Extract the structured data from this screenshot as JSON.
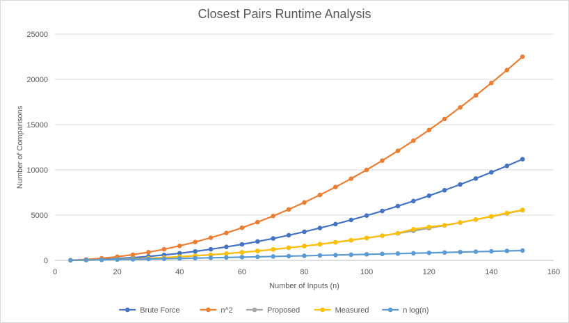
{
  "chart_data": {
    "type": "line",
    "title": "Closest Pairs Runtime Analysis",
    "xlabel": "Number  of Inputs (n)",
    "ylabel": "Number  of Comparisons",
    "xlim": [
      0,
      160
    ],
    "ylim": [
      0,
      25000
    ],
    "x_ticks": [
      "0",
      "20",
      "40",
      "60",
      "80",
      "100",
      "120",
      "140",
      "160"
    ],
    "y_ticks": [
      "0",
      "5000",
      "10000",
      "15000",
      "20000",
      "25000"
    ],
    "grid": "horizontal",
    "legend_position": "bottom",
    "x": [
      5,
      10,
      15,
      20,
      25,
      30,
      35,
      40,
      45,
      50,
      55,
      60,
      65,
      70,
      75,
      80,
      85,
      90,
      95,
      100,
      105,
      110,
      115,
      120,
      125,
      130,
      135,
      140,
      145,
      150
    ],
    "series": [
      {
        "name": "Brute Force",
        "color": "#4472c4",
        "values": [
          10,
          45,
          105,
          190,
          300,
          435,
          595,
          780,
          990,
          1225,
          1485,
          1770,
          2080,
          2415,
          2775,
          3160,
          3570,
          4005,
          4465,
          4950,
          5460,
          5995,
          6555,
          7140,
          7750,
          8385,
          9045,
          9730,
          10440,
          11175
        ]
      },
      {
        "name": "n^2",
        "color": "#ed7d31",
        "values": [
          25,
          100,
          225,
          400,
          625,
          900,
          1225,
          1600,
          2025,
          2500,
          3025,
          3600,
          4225,
          4900,
          5625,
          6400,
          7225,
          8100,
          9025,
          10000,
          11025,
          12100,
          13225,
          14400,
          15625,
          16900,
          18225,
          19600,
          21025,
          22500
        ]
      },
      {
        "name": "Proposed",
        "color": "#a5a5a5",
        "values": [
          5,
          25,
          55,
          100,
          155,
          220,
          300,
          390,
          495,
          610,
          740,
          880,
          1035,
          1200,
          1380,
          1570,
          1775,
          1990,
          2220,
          2460,
          2715,
          2980,
          3260,
          3550,
          3855,
          4170,
          4495,
          4830,
          5180,
          5540
        ]
      },
      {
        "name": "Measured",
        "color": "#ffc000",
        "values": [
          5,
          25,
          60,
          105,
          160,
          225,
          305,
          400,
          500,
          620,
          745,
          890,
          1040,
          1210,
          1390,
          1580,
          1780,
          2000,
          2230,
          2480,
          2730,
          3000,
          3440,
          3690,
          3880,
          4190,
          4520,
          4860,
          5230,
          5570
        ]
      },
      {
        "name": "n log(n)",
        "color": "#5b9bd5",
        "values": [
          12,
          33,
          59,
          86,
          116,
          147,
          180,
          213,
          247,
          282,
          318,
          354,
          391,
          429,
          467,
          506,
          545,
          584,
          624,
          664,
          705,
          746,
          787,
          829,
          871,
          913,
          955,
          998,
          1041,
          1084
        ]
      }
    ]
  }
}
